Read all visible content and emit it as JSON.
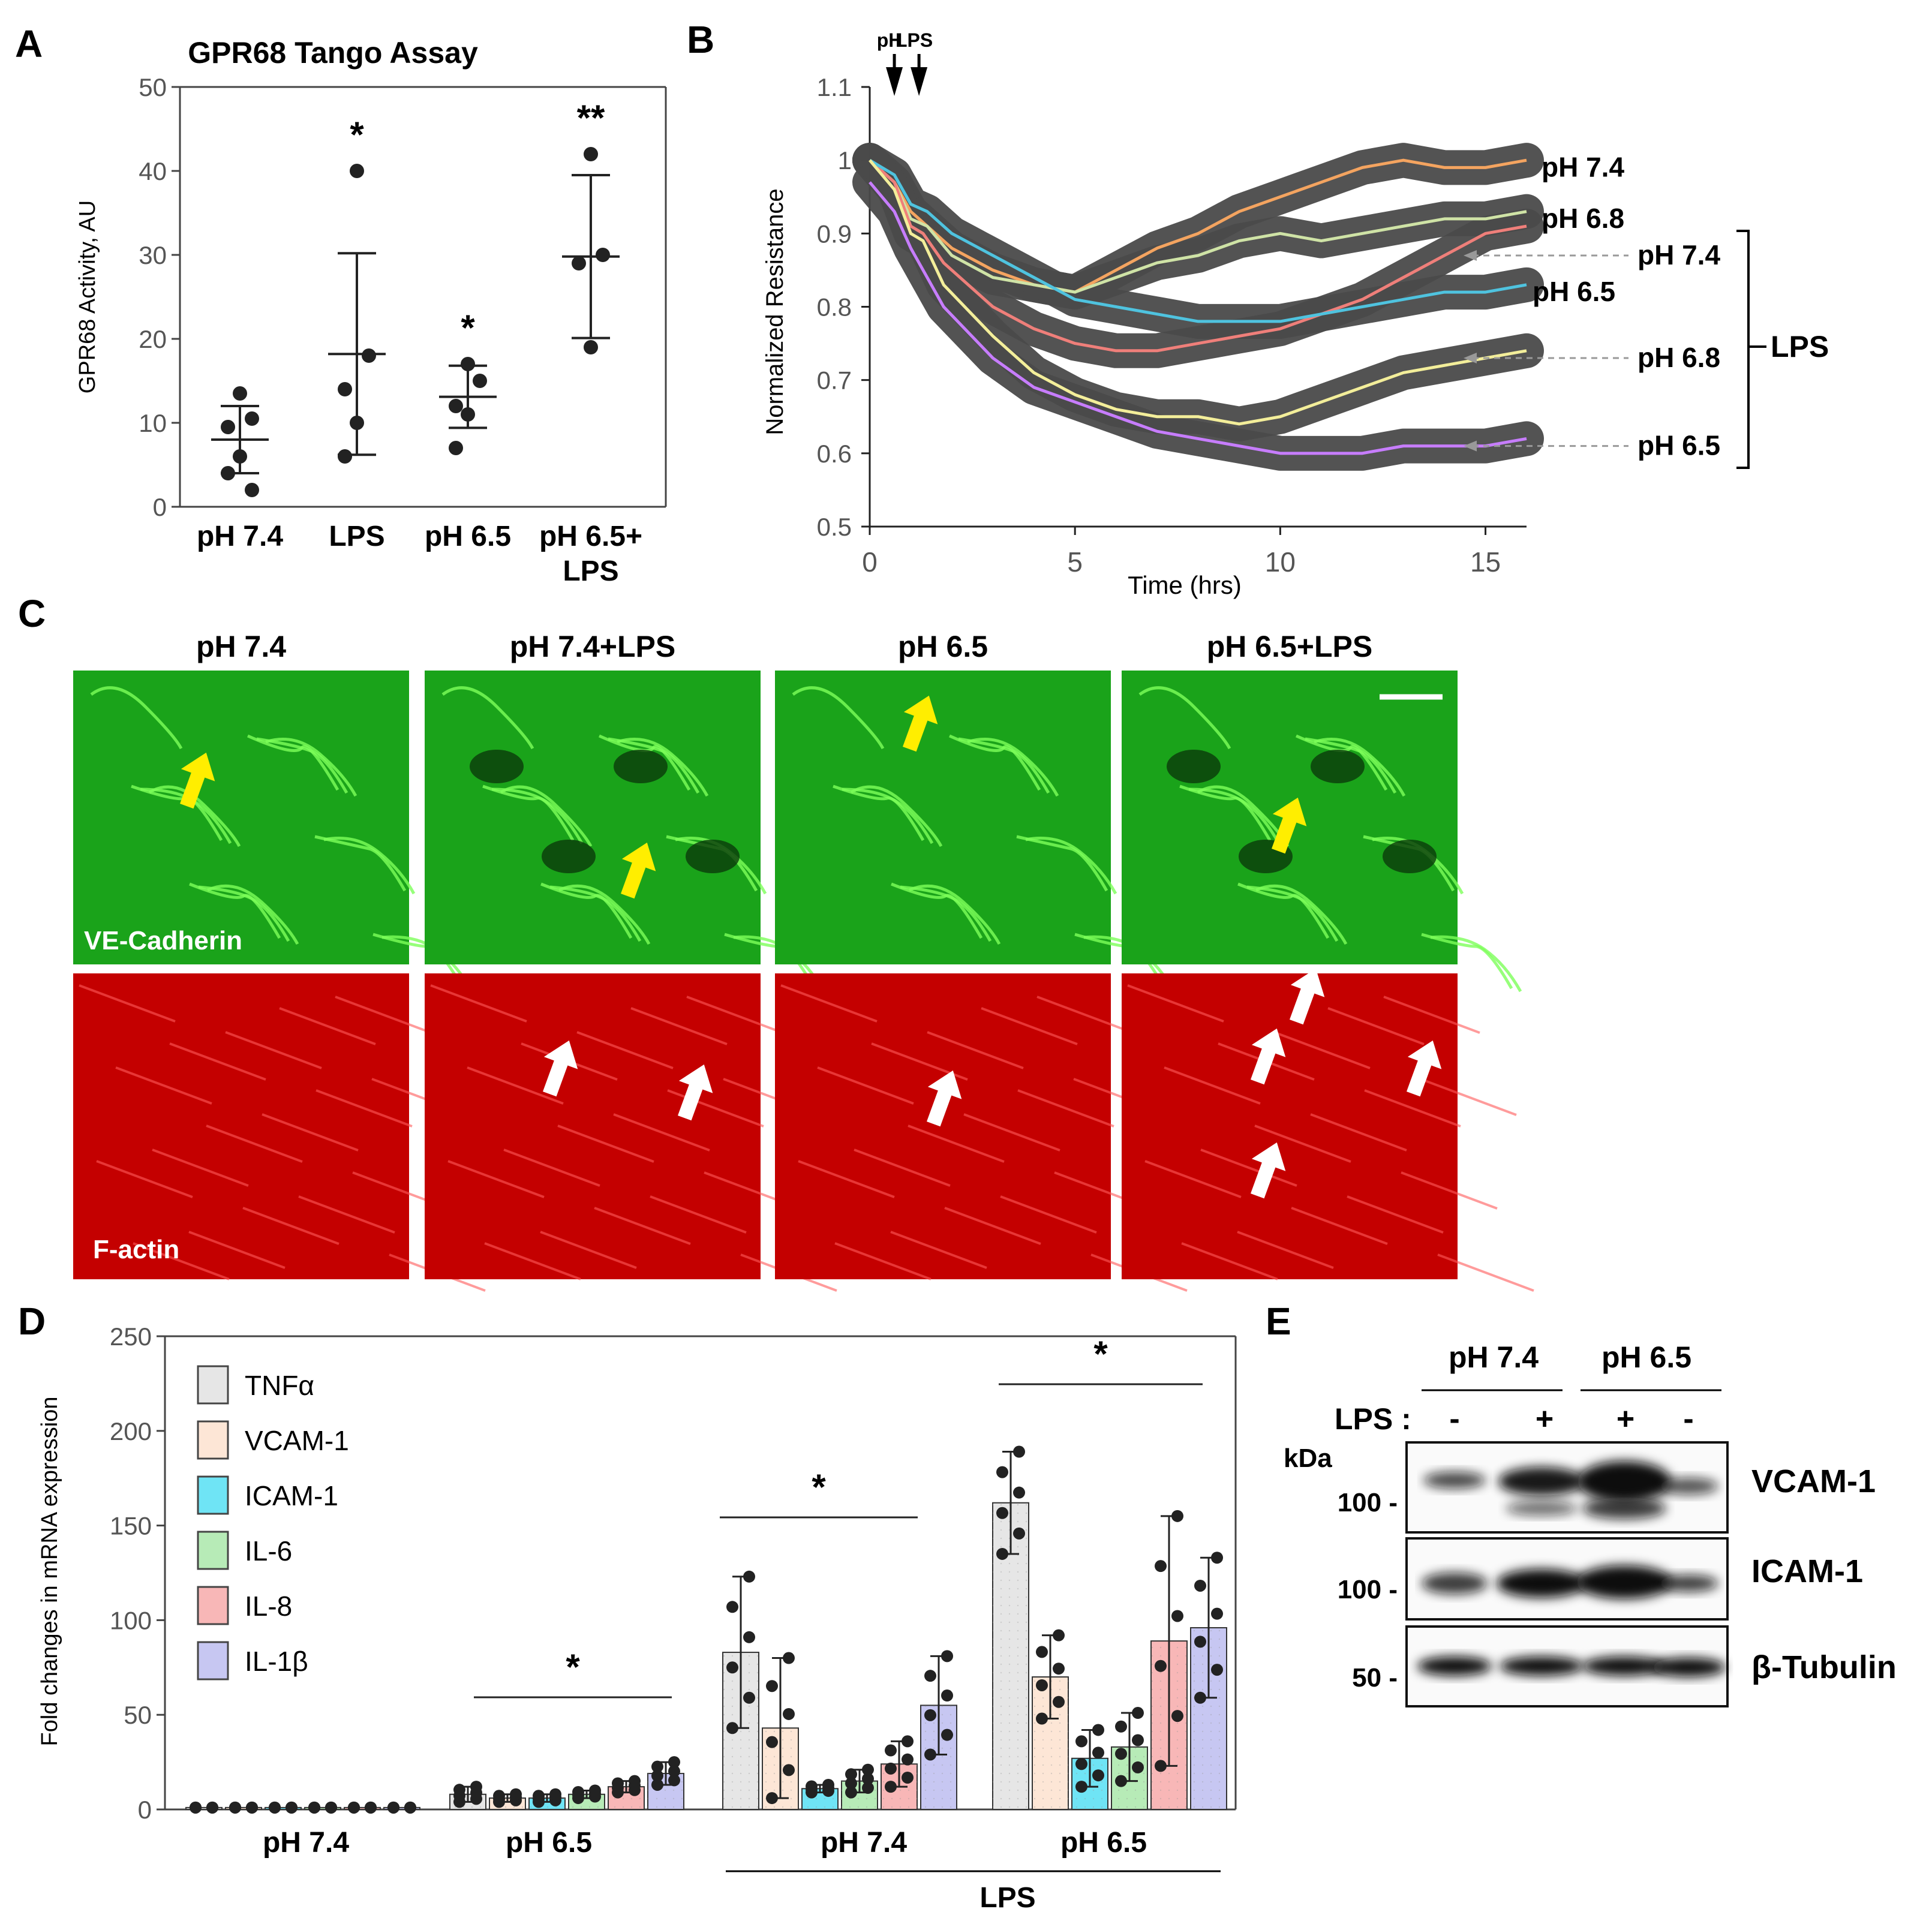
{
  "panels": {
    "a": "A",
    "b": "B",
    "c": "C",
    "d": "D",
    "e": "E"
  },
  "colors": {
    "ph74": "#f4a460",
    "ph68": "#cfe3a6",
    "ph74lps": "#ef7f7a",
    "ph65": "#4fc3df",
    "ph68lps": "#f3ee9a",
    "ph65lps": "#c77dff",
    "band": "#4a4a4a",
    "green": "#1aa31a",
    "red": "#c40000",
    "arrowYellow": "#ffee00"
  },
  "chart_data": [
    {
      "id": "A",
      "type": "scatter",
      "title": "GPR68 Tango Assay",
      "xlabel": "",
      "ylabel": "GPR68 Activity, AU",
      "ylim": [
        0,
        50
      ],
      "yticks": [
        "0",
        "10",
        "20",
        "30",
        "40",
        "50"
      ],
      "categories": [
        "pH 7.4",
        "LPS",
        "pH 6.5",
        "pH 6.5+\nLPS"
      ],
      "points": [
        [
          13.5,
          10.5,
          9.5,
          6,
          4,
          2
        ],
        [
          40,
          18,
          14,
          10,
          6
        ],
        [
          17,
          15,
          12,
          11,
          7
        ],
        [
          42,
          30,
          29,
          19
        ]
      ],
      "mean": [
        8,
        18.2,
        13.1,
        29.8
      ],
      "sd": [
        4,
        12,
        3.7,
        9.7
      ],
      "significance": [
        "",
        "*",
        "*",
        "**"
      ]
    },
    {
      "id": "B",
      "type": "line",
      "xlabel": "Time (hrs)",
      "ylabel": "Normalized Resistance",
      "xlim": [
        0,
        16
      ],
      "ylim": [
        0.5,
        1.1
      ],
      "xticks": [
        "0",
        "5",
        "10",
        "15"
      ],
      "yticks": [
        "0.5",
        "0.6",
        "0.7",
        "0.8",
        "0.9",
        "1",
        "1.1"
      ],
      "annotations": [
        "pH",
        "LPS"
      ],
      "annotation_x": [
        0.6,
        1.2
      ],
      "series": [
        {
          "name": "pH 7.4",
          "key": "ph74",
          "x": [
            0,
            0.6,
            1,
            1.4,
            2,
            3,
            4,
            5,
            6,
            7,
            8,
            9,
            10,
            11,
            12,
            13,
            14,
            15,
            16
          ],
          "y": [
            1.0,
            0.97,
            0.93,
            0.91,
            0.88,
            0.85,
            0.83,
            0.82,
            0.85,
            0.88,
            0.9,
            0.93,
            0.95,
            0.97,
            0.99,
            1.0,
            0.99,
            0.99,
            1.0
          ]
        },
        {
          "name": "pH 6.8",
          "key": "ph68",
          "x": [
            0,
            0.6,
            1,
            1.4,
            2,
            3,
            4,
            5,
            6,
            7,
            8,
            9,
            10,
            11,
            12,
            13,
            14,
            15,
            16
          ],
          "y": [
            1.0,
            0.97,
            0.92,
            0.91,
            0.87,
            0.84,
            0.83,
            0.82,
            0.84,
            0.86,
            0.87,
            0.89,
            0.9,
            0.89,
            0.9,
            0.91,
            0.92,
            0.92,
            0.93
          ]
        },
        {
          "name": "pH 7.4",
          "key": "ph74lps",
          "x": [
            0,
            0.6,
            1,
            1.3,
            1.8,
            3,
            4,
            5,
            6,
            7,
            8,
            9,
            10,
            11,
            12,
            13,
            14,
            15,
            16
          ],
          "y": [
            1.0,
            0.97,
            0.91,
            0.9,
            0.86,
            0.8,
            0.77,
            0.75,
            0.74,
            0.74,
            0.75,
            0.76,
            0.77,
            0.79,
            0.81,
            0.84,
            0.87,
            0.9,
            0.91
          ]
        },
        {
          "name": "pH 6.5",
          "key": "ph65",
          "x": [
            0,
            0.6,
            1,
            1.4,
            2,
            3,
            4,
            5,
            6,
            7,
            8,
            9,
            10,
            11,
            12,
            13,
            14,
            15,
            16
          ],
          "y": [
            1.0,
            0.98,
            0.94,
            0.93,
            0.9,
            0.87,
            0.84,
            0.81,
            0.8,
            0.79,
            0.78,
            0.78,
            0.78,
            0.79,
            0.8,
            0.81,
            0.82,
            0.82,
            0.83
          ]
        },
        {
          "name": "pH 6.8",
          "key": "ph68lps",
          "x": [
            0,
            0.6,
            1,
            1.3,
            1.8,
            3,
            4,
            5,
            6,
            7,
            8,
            9,
            10,
            11,
            12,
            13,
            14,
            15,
            16
          ],
          "y": [
            1.0,
            0.96,
            0.9,
            0.89,
            0.83,
            0.76,
            0.71,
            0.68,
            0.66,
            0.65,
            0.65,
            0.64,
            0.65,
            0.67,
            0.69,
            0.71,
            0.72,
            0.73,
            0.74
          ]
        },
        {
          "name": "pH 6.5",
          "key": "ph65lps",
          "x": [
            0,
            0.6,
            1,
            1.3,
            1.8,
            3,
            4,
            5,
            6,
            7,
            8,
            9,
            10,
            11,
            12,
            13,
            14,
            15,
            16
          ],
          "y": [
            0.97,
            0.93,
            0.88,
            0.85,
            0.8,
            0.73,
            0.69,
            0.67,
            0.65,
            0.63,
            0.62,
            0.61,
            0.6,
            0.6,
            0.6,
            0.61,
            0.61,
            0.61,
            0.62
          ]
        }
      ],
      "right_labels": [
        "pH 7.4",
        "pH 6.8",
        "pH 7.4",
        "pH 6.5",
        "pH 6.8",
        "pH 6.5"
      ],
      "lps_label": "LPS"
    },
    {
      "id": "D",
      "type": "bar",
      "ylabel": "Fold changes in  mRNA expression",
      "ylim": [
        0,
        250
      ],
      "yticks": [
        "0",
        "50",
        "100",
        "150",
        "200",
        "250"
      ],
      "groups": [
        "pH 7.4",
        "pH 6.5",
        "pH 7.4",
        "pH 6.5"
      ],
      "group_caption": "LPS",
      "legend": [
        "TNFα",
        "VCAM-1",
        "ICAM-1",
        "IL-6",
        "IL-8",
        "IL-1β"
      ],
      "legend_colors": [
        "#e6e6e6",
        "#fde6d6",
        "#6fe4f5",
        "#b7ebb7",
        "#f8b7b7",
        "#c7c7f2"
      ],
      "series": [
        {
          "name": "TNFα",
          "values": [
            1,
            8,
            83,
            162
          ],
          "sd": [
            0,
            4,
            40,
            27
          ]
        },
        {
          "name": "VCAM-1",
          "values": [
            1,
            6,
            43,
            70
          ],
          "sd": [
            0,
            2,
            37,
            22
          ]
        },
        {
          "name": "ICAM-1",
          "values": [
            1,
            6,
            11,
            27
          ],
          "sd": [
            0,
            2,
            2,
            15
          ]
        },
        {
          "name": "IL-6",
          "values": [
            1,
            8,
            15,
            33
          ],
          "sd": [
            0,
            2,
            6,
            18
          ]
        },
        {
          "name": "IL-8",
          "values": [
            1,
            12,
            24,
            89
          ],
          "sd": [
            0,
            3,
            12,
            66
          ]
        },
        {
          "name": "IL-1β",
          "values": [
            1,
            19,
            55,
            96
          ],
          "sd": [
            0,
            6,
            26,
            37
          ]
        }
      ],
      "significance": [
        "",
        "*",
        "*",
        "*"
      ]
    }
  ],
  "panelC": {
    "columns": [
      "pH 7.4",
      "pH 7.4+LPS",
      "pH 6.5",
      "pH 6.5+LPS"
    ],
    "row1_label": "VE-Cadherin",
    "row2_label": "F-actin"
  },
  "panelE": {
    "group_labels": [
      "pH 7.4",
      "pH 6.5"
    ],
    "lps_row_label": "LPS :",
    "lps_signs": [
      "-",
      "+",
      "+",
      "-"
    ],
    "kda_label": "kDa",
    "blots": [
      {
        "name": "VCAM-1",
        "marker": "100 -"
      },
      {
        "name": "ICAM-1",
        "marker": "100 -"
      },
      {
        "name": "β-Tubulin",
        "marker": "50 -"
      }
    ]
  }
}
